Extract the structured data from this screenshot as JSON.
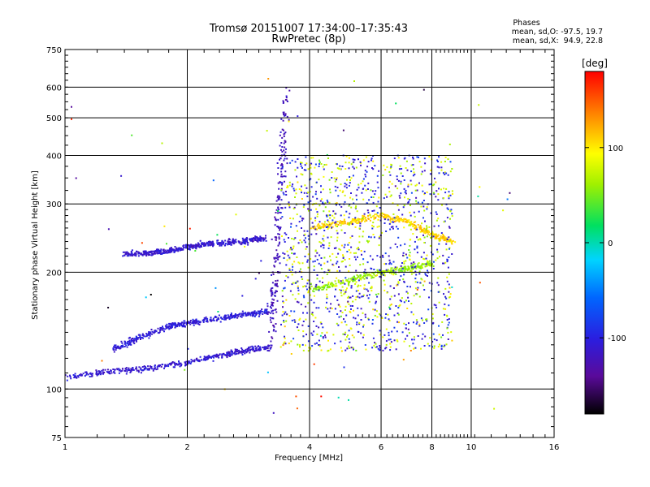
{
  "chart_data": {
    "type": "scatter",
    "title": "Tromsø 20151007 17:34:00–17:35:43",
    "subtitle": "RwPretec (8p)",
    "xlabel": "Frequency [MHz]",
    "ylabel": "Stationary phase Virtual Height [km]",
    "x_scale": "log",
    "y_scale": "log",
    "xlim": [
      1,
      16
    ],
    "ylim": [
      75,
      750
    ],
    "x_ticks": [
      "1",
      "2",
      "4",
      "6",
      "8",
      "10",
      "16"
    ],
    "y_ticks": [
      "750",
      "600",
      "500",
      "400",
      "300",
      "200",
      "100",
      "75"
    ],
    "grid": true,
    "stats": {
      "heading": "Phases",
      "line_o": "mean, sd,O: -97.5, 19.7",
      "line_x": "mean, sd,X:  94.9, 22.8"
    },
    "colorbar": {
      "label": "[deg]",
      "range": [
        -180,
        180
      ],
      "ticks": [
        "100",
        "0",
        "-100"
      ],
      "tick_values": [
        100,
        0,
        -100
      ],
      "colormap": "rainbow"
    },
    "traces": [
      {
        "segment": "low O trace",
        "x": [
          1.0,
          1.3,
          1.6,
          2.0,
          2.4,
          2.8,
          3.2
        ],
        "y": [
          107,
          111,
          113,
          117,
          122,
          126,
          128
        ],
        "phase": -110
      },
      {
        "segment": "low trace 2",
        "x": [
          1.3,
          1.5,
          1.8,
          2.0,
          2.4,
          2.8,
          3.2
        ],
        "y": [
          125,
          135,
          145,
          148,
          152,
          156,
          158
        ],
        "phase": -105
      },
      {
        "segment": "upper F trace",
        "x": [
          1.4,
          1.6,
          1.8,
          2.0,
          2.2,
          2.5,
          2.8,
          3.1
        ],
        "y": [
          223,
          224,
          227,
          232,
          236,
          238,
          241,
          244
        ],
        "phase": -110
      },
      {
        "segment": "spread F column",
        "x": [
          3.2,
          3.3,
          3.4,
          3.5
        ],
        "y": [
          130,
          200,
          350,
          600
        ],
        "phase": -120
      },
      {
        "segment": "oblique echoes",
        "x": [
          4.0,
          5.0,
          6.0,
          7.0,
          8.0
        ],
        "y": [
          180,
          190,
          200,
          205,
          210
        ],
        "phase": 60
      },
      {
        "segment": "X layer",
        "x": [
          4.0,
          5.0,
          6.0,
          7.0,
          8.0,
          9.0
        ],
        "y": [
          260,
          270,
          280,
          270,
          250,
          240
        ],
        "phase": 110
      }
    ]
  }
}
